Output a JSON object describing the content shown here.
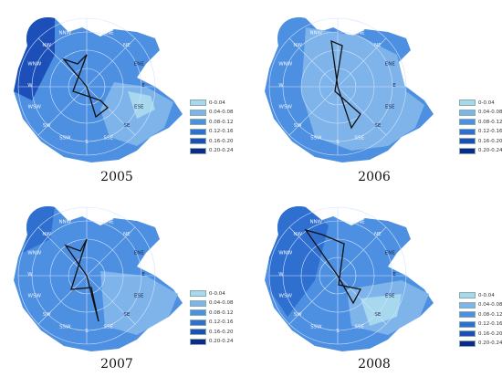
{
  "legend": {
    "classes": [
      {
        "label": "0-0.04",
        "color": "#a8d8ee"
      },
      {
        "label": "0.04-0.08",
        "color": "#7fb4ea"
      },
      {
        "label": "0.08-0.12",
        "color": "#4d8fe0"
      },
      {
        "label": "0.12-0.16",
        "color": "#2f6fd0"
      },
      {
        "label": "0.16-0.20",
        "color": "#1d4fb8"
      },
      {
        "label": "0.20-0.24",
        "color": "#0d2a8a"
      }
    ]
  },
  "directions_visible": [
    "NNW",
    "NNE",
    "NE",
    "ENE",
    "E",
    "ESE",
    "SE",
    "SSE",
    "S",
    "SSW",
    "SW",
    "WSW",
    "W",
    "WNW",
    "NW"
  ],
  "panels": [
    {
      "year": "2005",
      "dominant_levels": [
        "0.08-0.12",
        "0.12-0.16",
        "0.16-0.20"
      ]
    },
    {
      "year": "2006",
      "dominant_levels": [
        "0.04-0.08",
        "0.08-0.12"
      ]
    },
    {
      "year": "2007",
      "dominant_levels": [
        "0.04-0.08",
        "0.08-0.12",
        "0.12-0.16"
      ]
    },
    {
      "year": "2008",
      "dominant_levels": [
        "0.08-0.12",
        "0.12-0.16"
      ]
    }
  ]
}
